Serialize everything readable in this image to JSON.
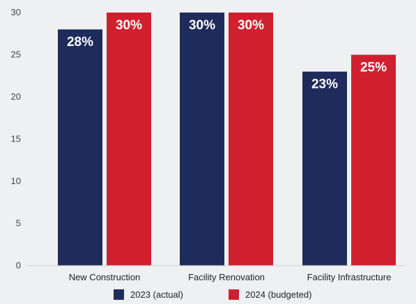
{
  "chart_data": {
    "type": "bar",
    "categories": [
      "New Construction",
      "Facility Renovation",
      "Facility Infrastructure"
    ],
    "series": [
      {
        "name": "2023 (actual)",
        "values": [
          28,
          30,
          23
        ],
        "labels": [
          "28%",
          "30%",
          "23%"
        ],
        "color": "#1f2b5b"
      },
      {
        "name": "2024 (budgeted)",
        "values": [
          30,
          30,
          25
        ],
        "labels": [
          "30%",
          "30%",
          "25%"
        ],
        "color": "#d0202f"
      }
    ],
    "ylim": [
      0,
      30
    ],
    "yticks": [
      0,
      5,
      10,
      15,
      20,
      25,
      30
    ],
    "title": "",
    "xlabel": "",
    "ylabel": "",
    "grid": false,
    "legend": "bottom-center"
  }
}
